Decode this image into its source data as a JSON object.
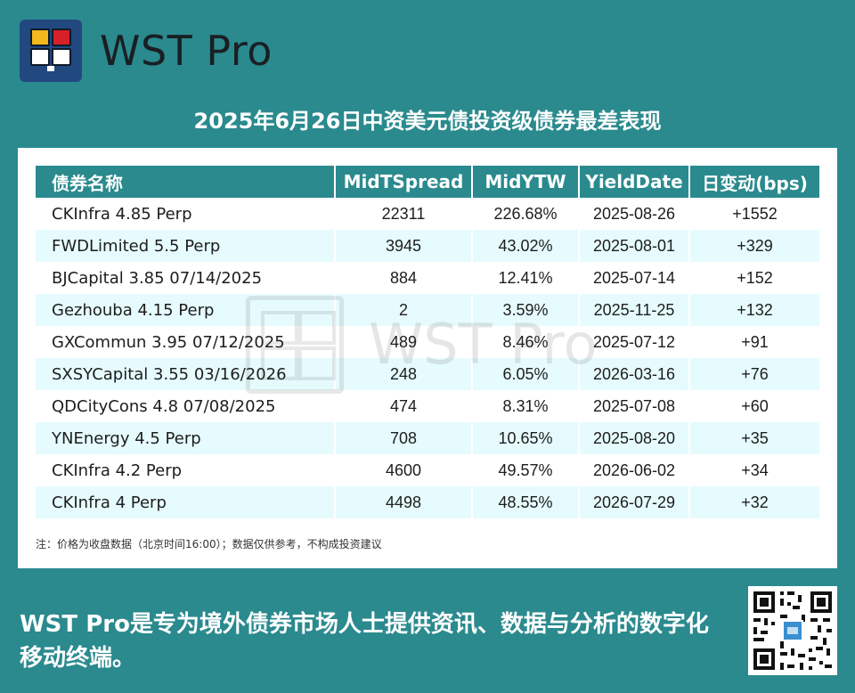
{
  "header": {
    "logo_icon": "wst-pro-logo-icon",
    "brand": "WST Pro"
  },
  "title": "2025年6月26日中资美元债投资级债券最差表现",
  "table": {
    "columns": [
      "债券名称",
      "MidTSpread",
      "MidYTW",
      "YieldDate",
      "日变动(bps)"
    ],
    "rows": [
      {
        "name": "CKInfra 4.85 Perp",
        "spread": "22311",
        "ytw": "226.68%",
        "date": "2025-08-26",
        "change": "+1552"
      },
      {
        "name": "FWDLimited 5.5 Perp",
        "spread": "3945",
        "ytw": "43.02%",
        "date": "2025-08-01",
        "change": "+329"
      },
      {
        "name": "BJCapital 3.85 07/14/2025",
        "spread": "884",
        "ytw": "12.41%",
        "date": "2025-07-14",
        "change": "+152"
      },
      {
        "name": "Gezhouba 4.15 Perp",
        "spread": "2",
        "ytw": "3.59%",
        "date": "2025-11-25",
        "change": "+132"
      },
      {
        "name": "GXCommun 3.95 07/12/2025",
        "spread": "489",
        "ytw": "8.46%",
        "date": "2025-07-12",
        "change": "+91"
      },
      {
        "name": "SXSYCapital 3.55 03/16/2026",
        "spread": "248",
        "ytw": "6.05%",
        "date": "2026-03-16",
        "change": "+76"
      },
      {
        "name": "QDCityCons 4.8 07/08/2025",
        "spread": "474",
        "ytw": "8.31%",
        "date": "2025-07-08",
        "change": "+60"
      },
      {
        "name": "YNEnergy 4.5 Perp",
        "spread": "708",
        "ytw": "10.65%",
        "date": "2025-08-20",
        "change": "+35"
      },
      {
        "name": "CKInfra 4.2 Perp",
        "spread": "4600",
        "ytw": "49.57%",
        "date": "2026-06-02",
        "change": "+34"
      },
      {
        "name": "CKInfra 4 Perp",
        "spread": "4498",
        "ytw": "48.55%",
        "date": "2026-07-29",
        "change": "+32"
      }
    ]
  },
  "watermark": "WST Pro",
  "note": "注：价格为收盘数据（北京时间16:00）；数据仅供参考，不构成投资建议",
  "footer": {
    "tagline": "WST Pro是专为境外债券市场人士提供资讯、数据与分析的数字化移动终端。",
    "qr_icon": "qr-code-icon"
  },
  "colors": {
    "background": "#2a8a8e",
    "header_row": "#2a8a8e",
    "alt_row": "#e6fbfd",
    "logo_bg": "#21497f"
  }
}
